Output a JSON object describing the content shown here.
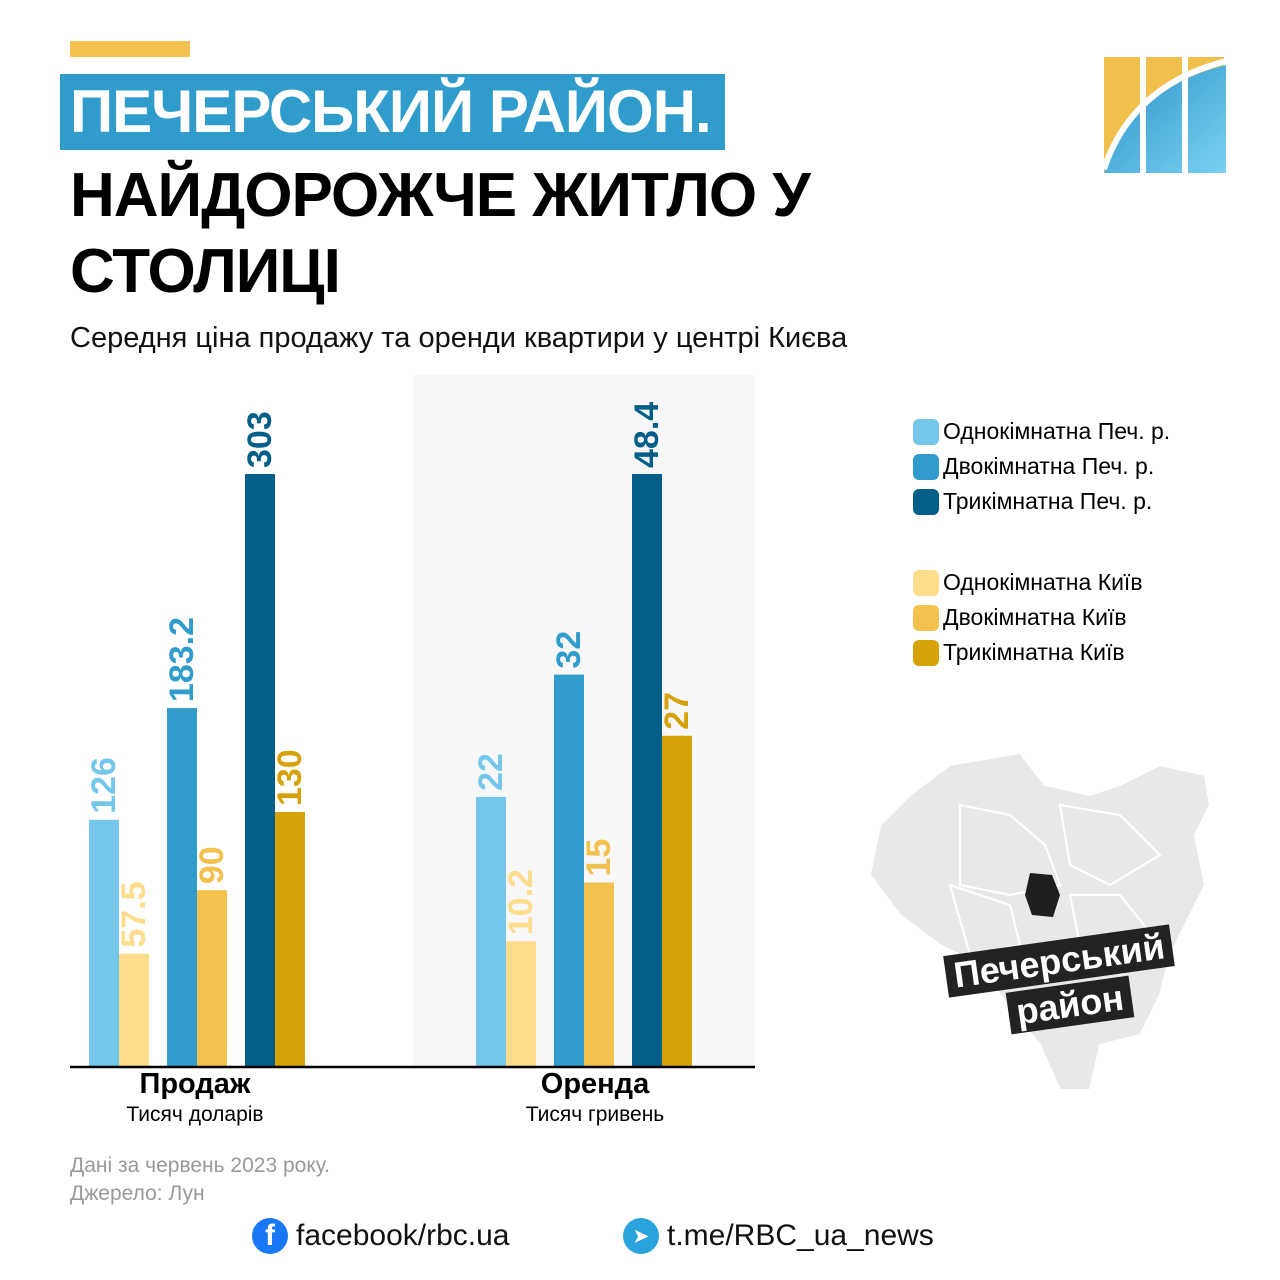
{
  "header": {
    "title_line1": "ПЕЧЕРСЬКИЙ РАЙОН.",
    "title_line2": "НАЙДОРОЖЧЕ ЖИТЛО У СТОЛИЦІ",
    "subtitle": "Середня ціна продажу та оренди квартири у центрі Києва"
  },
  "chart_data": {
    "type": "bar",
    "title": "Середня ціна продажу та оренди квартири у центрі Києва",
    "categories": [
      "Продаж",
      "Оренда"
    ],
    "category_units": [
      "Тисяч доларів",
      "Тисяч гривень"
    ],
    "series": [
      {
        "name": "Однокімнатна Печ. р.",
        "color": "#74c7ea",
        "values": [
          126,
          22
        ],
        "labels": [
          "126",
          "22"
        ]
      },
      {
        "name": "Однокімнатна Київ",
        "color": "#fddc8b",
        "values": [
          57.5,
          10.2
        ],
        "labels": [
          "57.5",
          "10.2"
        ]
      },
      {
        "name": "Двокімнатна Печ. р.",
        "color": "#2f9ccb",
        "values": [
          183.2,
          32
        ],
        "labels": [
          "183.2",
          "32"
        ]
      },
      {
        "name": "Двокімнатна Київ",
        "color": "#f2c14e",
        "values": [
          90,
          15
        ],
        "labels": [
          "90",
          "15"
        ]
      },
      {
        "name": "Трикімнатна Печ. р.",
        "color": "#035f87",
        "values": [
          303,
          48.4
        ],
        "labels": [
          "303",
          "48.4"
        ]
      },
      {
        "name": "Трикімнатна Київ",
        "color": "#d6a20a",
        "values": [
          130,
          27
        ],
        "labels": [
          "130",
          "27"
        ]
      }
    ],
    "legend_order": [
      0,
      2,
      4,
      1,
      3,
      5
    ],
    "legend_position": "right",
    "grid": false
  },
  "map": {
    "label": "Печерський район"
  },
  "footer": {
    "note": "Дані за червень 2023 року.",
    "source": "Джерело: Лун",
    "facebook": "facebook/rbc.ua",
    "telegram": "t.me/RBC_ua_news"
  }
}
